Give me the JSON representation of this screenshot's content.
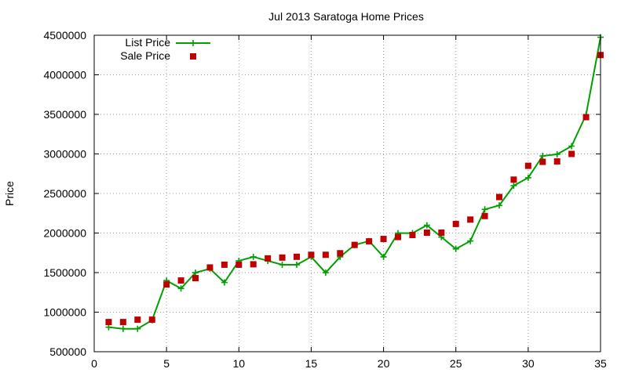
{
  "chart_data": {
    "type": "line",
    "title": "Jul 2013 Saratoga Home Prices",
    "xlabel": "",
    "ylabel": "Price",
    "xlim": [
      0,
      35
    ],
    "ylim": [
      500000,
      4500000
    ],
    "xticks": [
      0,
      5,
      10,
      15,
      20,
      25,
      30,
      35
    ],
    "yticks": [
      500000,
      1000000,
      1500000,
      2000000,
      2500000,
      3000000,
      3500000,
      4000000,
      4500000
    ],
    "grid": true,
    "legend_position": "top-left",
    "series": [
      {
        "name": "List Price",
        "style": "line-with-plus-markers",
        "color": "#00a000",
        "x": [
          1,
          2,
          3,
          4,
          5,
          6,
          7,
          8,
          9,
          10,
          11,
          12,
          13,
          14,
          15,
          16,
          17,
          18,
          19,
          20,
          21,
          22,
          23,
          24,
          25,
          26,
          27,
          28,
          29,
          30,
          31,
          32,
          33,
          34,
          35
        ],
        "y": [
          810000,
          790000,
          790000,
          899000,
          1399000,
          1299000,
          1499000,
          1549000,
          1375000,
          1649000,
          1699000,
          1649000,
          1599000,
          1599000,
          1699000,
          1499000,
          1699000,
          1849000,
          1899000,
          1699000,
          1999000,
          1999000,
          2099000,
          1949000,
          1799000,
          1899000,
          2299000,
          2349000,
          2599000,
          2699000,
          2975000,
          2995000,
          3099000,
          3495000,
          4475000
        ]
      },
      {
        "name": "Sale Price",
        "style": "square-markers",
        "color": "#c00000",
        "x": [
          1,
          2,
          3,
          4,
          5,
          6,
          7,
          8,
          9,
          10,
          11,
          12,
          13,
          14,
          15,
          16,
          17,
          18,
          19,
          20,
          21,
          22,
          23,
          24,
          25,
          26,
          27,
          28,
          29,
          30,
          31,
          32,
          33,
          34,
          35
        ],
        "y": [
          875000,
          875000,
          905000,
          905000,
          1350000,
          1400000,
          1430000,
          1565000,
          1600000,
          1600000,
          1605000,
          1680000,
          1690000,
          1700000,
          1725000,
          1725000,
          1745000,
          1850000,
          1895000,
          1925000,
          1950000,
          1975000,
          2005000,
          2005000,
          2115000,
          2170000,
          2215000,
          2455000,
          2675000,
          2850000,
          2900000,
          2905000,
          3000000,
          3465000,
          4250000
        ]
      }
    ]
  }
}
